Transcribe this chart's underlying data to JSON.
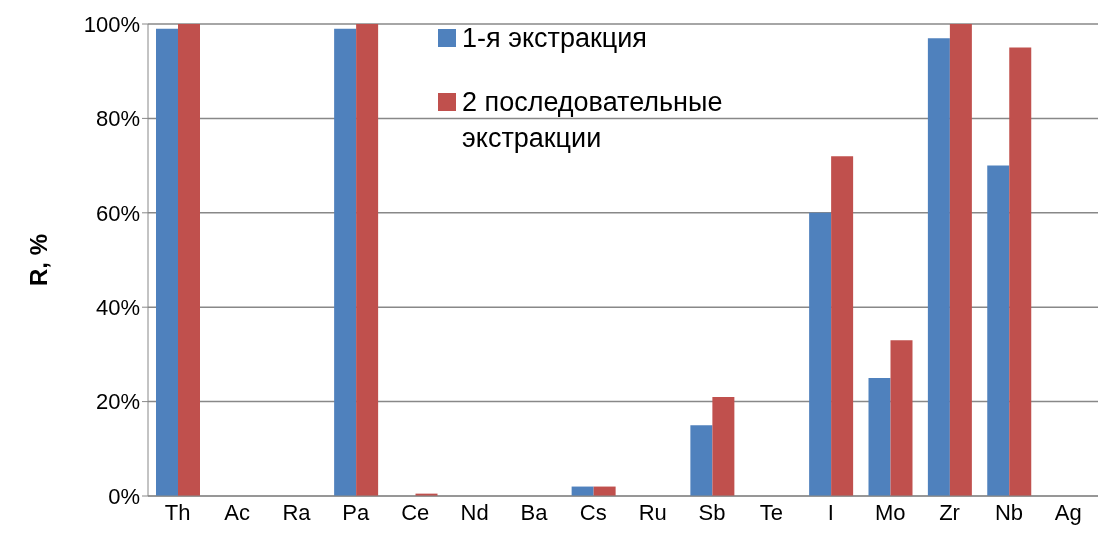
{
  "chart_data": {
    "type": "bar",
    "ylabel": "R, %",
    "categories": [
      "Th",
      "Ac",
      "Ra",
      "Pa",
      "Ce",
      "Nd",
      "Ba",
      "Cs",
      "Ru",
      "Sb",
      "Te",
      "I",
      "Mo",
      "Zr",
      "Nb",
      "Ag"
    ],
    "series": [
      {
        "name": "1-я экстракция",
        "color": "#4f81bd",
        "values": [
          99,
          0,
          0,
          99,
          0,
          0,
          0,
          2,
          0,
          15,
          0,
          60,
          25,
          97,
          70,
          0
        ]
      },
      {
        "name": "2 последовательные экстракции",
        "color": "#c0504d",
        "values": [
          100,
          0,
          0,
          100,
          0.5,
          0,
          0,
          2,
          0,
          21,
          0,
          72,
          33,
          100,
          95,
          0
        ]
      }
    ],
    "ylim": [
      0,
      100
    ],
    "yticks": [
      {
        "value": 0,
        "label": "0%"
      },
      {
        "value": 20,
        "label": "20%"
      },
      {
        "value": 40,
        "label": "40%"
      },
      {
        "value": 60,
        "label": "60%"
      },
      {
        "value": 80,
        "label": "80%"
      },
      {
        "value": 100,
        "label": "100%"
      }
    ],
    "grid": "y",
    "legend": "top right"
  }
}
